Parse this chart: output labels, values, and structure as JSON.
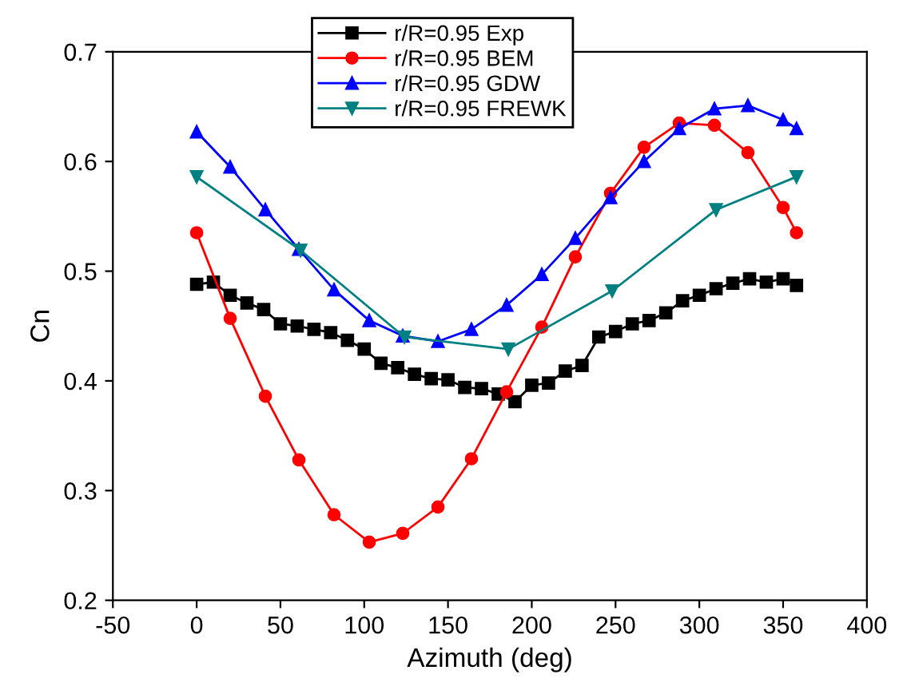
{
  "chart_data": {
    "type": "line",
    "xlabel": "Azimuth (deg)",
    "ylabel": "Cn",
    "xlim": [
      -50,
      400
    ],
    "xticks": [
      -50,
      0,
      50,
      100,
      150,
      200,
      250,
      300,
      350,
      400
    ],
    "ylim": [
      0.2,
      0.7
    ],
    "yticks": [
      0.2,
      0.3,
      0.4,
      0.5,
      0.6,
      0.7
    ],
    "grid": false,
    "legend": "top",
    "series": [
      {
        "name": "r/R=0.95 Exp",
        "color": "#000000",
        "marker": "square",
        "x": [
          0,
          10,
          20,
          30,
          40,
          50,
          60,
          70,
          80,
          90,
          100,
          110,
          120,
          130,
          140,
          150,
          160,
          170,
          180,
          190,
          200,
          210,
          220,
          230,
          240,
          250,
          260,
          270,
          280,
          290,
          300,
          310,
          320,
          330,
          340,
          350,
          358
        ],
        "values": [
          0.488,
          0.49,
          0.478,
          0.471,
          0.465,
          0.452,
          0.45,
          0.447,
          0.444,
          0.437,
          0.429,
          0.416,
          0.412,
          0.406,
          0.402,
          0.401,
          0.394,
          0.393,
          0.388,
          0.381,
          0.396,
          0.398,
          0.409,
          0.414,
          0.44,
          0.445,
          0.452,
          0.455,
          0.462,
          0.473,
          0.478,
          0.484,
          0.489,
          0.493,
          0.49,
          0.493,
          0.487
        ]
      },
      {
        "name": "r/R=0.95 BEM",
        "color": "#ff0000",
        "marker": "circle",
        "x": [
          0,
          20,
          41,
          61,
          82,
          103,
          123,
          144,
          164,
          185,
          206,
          226,
          247,
          267,
          288,
          309,
          329,
          350,
          358
        ],
        "values": [
          0.535,
          0.457,
          0.386,
          0.328,
          0.278,
          0.253,
          0.261,
          0.285,
          0.329,
          0.39,
          0.449,
          0.513,
          0.571,
          0.613,
          0.635,
          0.633,
          0.608,
          0.558,
          0.535
        ]
      },
      {
        "name": "r/R=0.95 GDW",
        "color": "#0000ff",
        "marker": "triangle",
        "x": [
          0,
          20,
          41,
          61,
          82,
          103,
          123,
          144,
          164,
          185,
          206,
          226,
          247,
          267,
          288,
          309,
          329,
          350,
          358
        ],
        "values": [
          0.627,
          0.595,
          0.556,
          0.52,
          0.483,
          0.455,
          0.441,
          0.436,
          0.447,
          0.469,
          0.497,
          0.53,
          0.567,
          0.6,
          0.63,
          0.648,
          0.651,
          0.638,
          0.63
        ]
      },
      {
        "name": "r/R=0.95 FREWK",
        "color": "#008080",
        "marker": "triangle_down",
        "x": [
          0,
          62,
          124,
          186,
          248,
          310,
          358
        ],
        "values": [
          0.586,
          0.519,
          0.44,
          0.429,
          0.482,
          0.556,
          0.586
        ]
      }
    ]
  }
}
